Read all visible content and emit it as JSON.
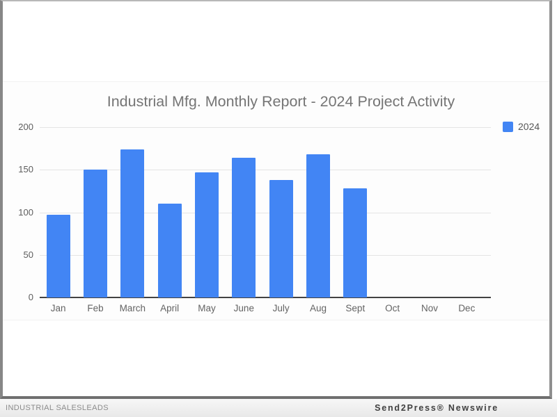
{
  "footer": {
    "left": "INDUSTRIAL SALESLEADS",
    "right": "Send2Press® Newswire"
  },
  "chart_data": {
    "type": "bar",
    "title": "Industrial Mfg. Monthly Report - 2024 Project Activity",
    "categories": [
      "Jan",
      "Feb",
      "March",
      "April",
      "May",
      "June",
      "July",
      "Aug",
      "Sept",
      "Oct",
      "Nov",
      "Dec"
    ],
    "series": [
      {
        "name": "2024",
        "color": "#4285f4",
        "values": [
          97,
          150,
          174,
          110,
          147,
          164,
          138,
          168,
          128,
          null,
          null,
          null
        ]
      }
    ],
    "xlabel": "",
    "ylabel": "",
    "ylim": [
      0,
      200
    ],
    "yticks": [
      0,
      50,
      100,
      150,
      200
    ],
    "grid": true,
    "legend_position": "top-right",
    "colors": {
      "bar": "#4285f4",
      "title_text": "#757575",
      "axis_line": "#424242",
      "gridline": "#e4e4e4"
    }
  }
}
